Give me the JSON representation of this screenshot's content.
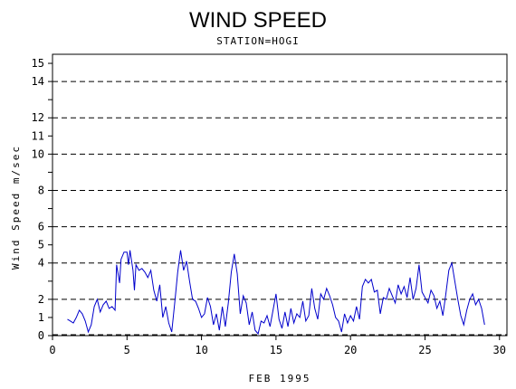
{
  "chart_data": {
    "type": "line",
    "title": "WIND SPEED",
    "subtitle": "STATION=HOGI",
    "xlabel": "FEB 1995",
    "ylabel": "Wind Speed m/sec",
    "xlim": [
      0,
      30.5
    ],
    "ylim": [
      0,
      15.5
    ],
    "x_ticks": [
      0,
      5,
      10,
      15,
      20,
      25,
      30
    ],
    "y_ticks": [
      0,
      1,
      2,
      4,
      5,
      6,
      8,
      10,
      11,
      12,
      14,
      15
    ],
    "grid_lines": [
      2,
      4,
      6,
      8,
      10,
      12,
      14
    ],
    "grid_style": "dashed",
    "line_color": "#0000cc",
    "series": [
      {
        "name": "",
        "points": [
          [
            1.0,
            0.9
          ],
          [
            1.2,
            0.8
          ],
          [
            1.4,
            0.7
          ],
          [
            1.6,
            1.0
          ],
          [
            1.8,
            1.4
          ],
          [
            2.0,
            1.2
          ],
          [
            2.2,
            0.8
          ],
          [
            2.4,
            0.2
          ],
          [
            2.6,
            0.6
          ],
          [
            2.8,
            1.6
          ],
          [
            3.0,
            2.0
          ],
          [
            3.2,
            1.3
          ],
          [
            3.4,
            1.7
          ],
          [
            3.6,
            1.9
          ],
          [
            3.8,
            1.5
          ],
          [
            4.0,
            1.6
          ],
          [
            4.2,
            1.4
          ],
          [
            4.3,
            3.9
          ],
          [
            4.5,
            2.9
          ],
          [
            4.6,
            4.2
          ],
          [
            4.8,
            4.6
          ],
          [
            5.0,
            4.6
          ],
          [
            5.1,
            3.9
          ],
          [
            5.2,
            4.7
          ],
          [
            5.4,
            3.6
          ],
          [
            5.5,
            2.5
          ],
          [
            5.6,
            3.9
          ],
          [
            5.8,
            3.6
          ],
          [
            6.0,
            3.7
          ],
          [
            6.2,
            3.5
          ],
          [
            6.4,
            3.2
          ],
          [
            6.6,
            3.6
          ],
          [
            6.8,
            2.5
          ],
          [
            7.0,
            1.9
          ],
          [
            7.2,
            2.8
          ],
          [
            7.4,
            1.0
          ],
          [
            7.6,
            1.6
          ],
          [
            7.8,
            0.7
          ],
          [
            8.0,
            0.2
          ],
          [
            8.2,
            1.8
          ],
          [
            8.4,
            3.5
          ],
          [
            8.6,
            4.7
          ],
          [
            8.8,
            3.6
          ],
          [
            9.0,
            4.1
          ],
          [
            9.2,
            3.0
          ],
          [
            9.4,
            2.0
          ],
          [
            9.6,
            1.9
          ],
          [
            9.8,
            1.5
          ],
          [
            10.0,
            1.0
          ],
          [
            10.2,
            1.2
          ],
          [
            10.4,
            2.1
          ],
          [
            10.6,
            1.6
          ],
          [
            10.8,
            0.6
          ],
          [
            11.0,
            1.2
          ],
          [
            11.2,
            0.3
          ],
          [
            11.4,
            1.6
          ],
          [
            11.6,
            0.5
          ],
          [
            11.8,
            1.8
          ],
          [
            12.0,
            3.5
          ],
          [
            12.2,
            4.5
          ],
          [
            12.4,
            3.4
          ],
          [
            12.6,
            1.2
          ],
          [
            12.8,
            2.2
          ],
          [
            13.0,
            1.8
          ],
          [
            13.2,
            0.6
          ],
          [
            13.4,
            1.3
          ],
          [
            13.6,
            0.3
          ],
          [
            13.8,
            0.1
          ],
          [
            14.0,
            0.8
          ],
          [
            14.2,
            0.7
          ],
          [
            14.4,
            1.1
          ],
          [
            14.6,
            0.5
          ],
          [
            14.8,
            1.4
          ],
          [
            15.0,
            2.3
          ],
          [
            15.2,
            0.9
          ],
          [
            15.4,
            0.4
          ],
          [
            15.6,
            1.3
          ],
          [
            15.8,
            0.5
          ],
          [
            16.0,
            1.5
          ],
          [
            16.2,
            0.7
          ],
          [
            16.4,
            1.2
          ],
          [
            16.6,
            1.0
          ],
          [
            16.8,
            1.9
          ],
          [
            17.0,
            0.8
          ],
          [
            17.2,
            1.1
          ],
          [
            17.4,
            2.6
          ],
          [
            17.6,
            1.5
          ],
          [
            17.8,
            0.9
          ],
          [
            18.0,
            2.3
          ],
          [
            18.2,
            2.0
          ],
          [
            18.4,
            2.6
          ],
          [
            18.6,
            2.2
          ],
          [
            18.8,
            1.7
          ],
          [
            19.0,
            1.0
          ],
          [
            19.2,
            0.8
          ],
          [
            19.4,
            0.2
          ],
          [
            19.6,
            1.2
          ],
          [
            19.8,
            0.7
          ],
          [
            20.0,
            1.1
          ],
          [
            20.2,
            0.8
          ],
          [
            20.4,
            1.6
          ],
          [
            20.6,
            0.9
          ],
          [
            20.8,
            2.7
          ],
          [
            21.0,
            3.1
          ],
          [
            21.2,
            2.9
          ],
          [
            21.4,
            3.1
          ],
          [
            21.6,
            2.4
          ],
          [
            21.8,
            2.5
          ],
          [
            22.0,
            1.2
          ],
          [
            22.2,
            2.1
          ],
          [
            22.4,
            2.0
          ],
          [
            22.6,
            2.6
          ],
          [
            22.8,
            2.2
          ],
          [
            23.0,
            1.8
          ],
          [
            23.2,
            2.8
          ],
          [
            23.4,
            2.3
          ],
          [
            23.6,
            2.7
          ],
          [
            23.8,
            2.1
          ],
          [
            24.0,
            3.2
          ],
          [
            24.2,
            2.0
          ],
          [
            24.4,
            2.6
          ],
          [
            24.6,
            3.9
          ],
          [
            24.8,
            2.4
          ],
          [
            25.0,
            2.1
          ],
          [
            25.2,
            1.8
          ],
          [
            25.4,
            2.5
          ],
          [
            25.6,
            2.2
          ],
          [
            25.8,
            1.5
          ],
          [
            26.0,
            1.9
          ],
          [
            26.2,
            1.1
          ],
          [
            26.4,
            2.3
          ],
          [
            26.6,
            3.6
          ],
          [
            26.8,
            4.0
          ],
          [
            27.0,
            3.0
          ],
          [
            27.2,
            2.0
          ],
          [
            27.4,
            1.1
          ],
          [
            27.6,
            0.6
          ],
          [
            27.8,
            1.4
          ],
          [
            28.0,
            2.0
          ],
          [
            28.2,
            2.3
          ],
          [
            28.4,
            1.7
          ],
          [
            28.6,
            2.0
          ],
          [
            28.8,
            1.5
          ],
          [
            29.0,
            0.6
          ]
        ]
      }
    ]
  }
}
